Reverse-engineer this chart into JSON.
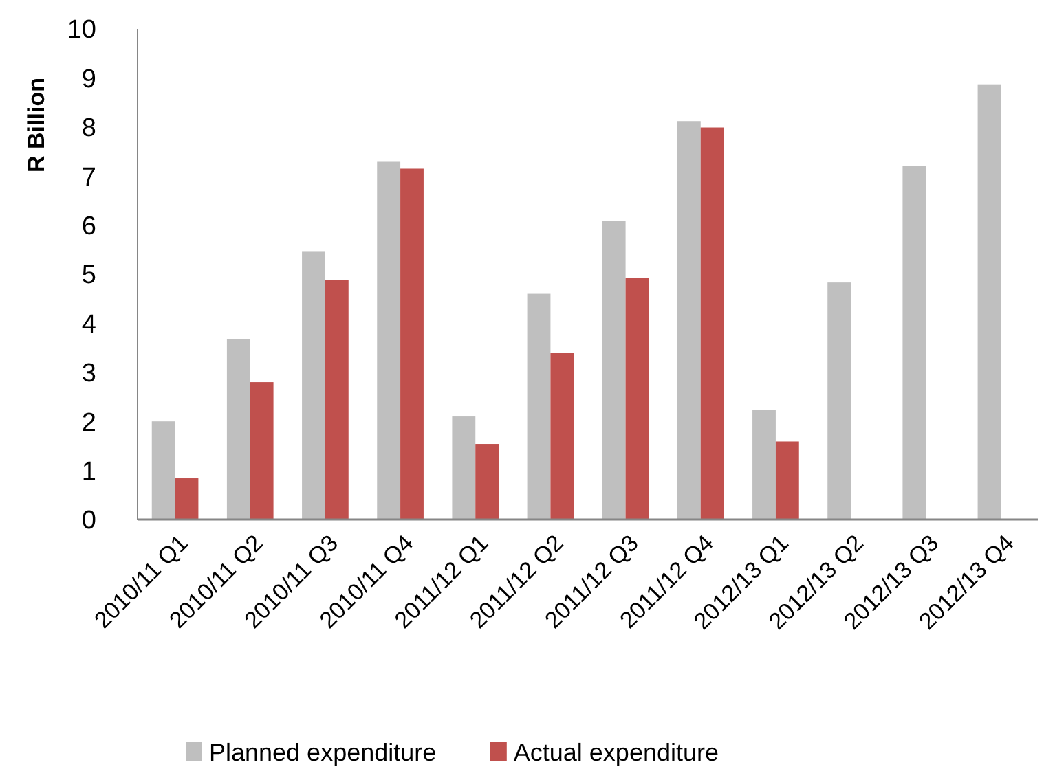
{
  "chart_data": {
    "type": "bar",
    "ylabel": "R Billion",
    "categories": [
      "2010/11 Q1",
      "2010/11 Q2",
      "2010/11 Q3",
      "2010/11 Q4",
      "2011/12 Q1",
      "2011/12 Q2",
      "2011/12 Q3",
      "2011/12 Q4",
      "2012/13 Q1",
      "2012/13 Q2",
      "2012/13 Q3",
      "2012/13 Q4"
    ],
    "series": [
      {
        "name": "Planned expenditure",
        "color": "#bfbfbf",
        "values": [
          2.0,
          3.67,
          5.47,
          7.29,
          2.1,
          4.6,
          6.08,
          8.12,
          2.24,
          4.83,
          7.2,
          8.87
        ]
      },
      {
        "name": "Actual expenditure",
        "color": "#c0504d",
        "values": [
          0.84,
          2.8,
          4.88,
          7.15,
          1.54,
          3.4,
          4.93,
          7.99,
          1.59,
          null,
          null,
          null
        ]
      }
    ],
    "ylim": [
      0,
      10
    ],
    "yticks": [
      0,
      1,
      2,
      3,
      4,
      5,
      6,
      7,
      8,
      9,
      10
    ],
    "grid": false,
    "legend": "bottom"
  }
}
